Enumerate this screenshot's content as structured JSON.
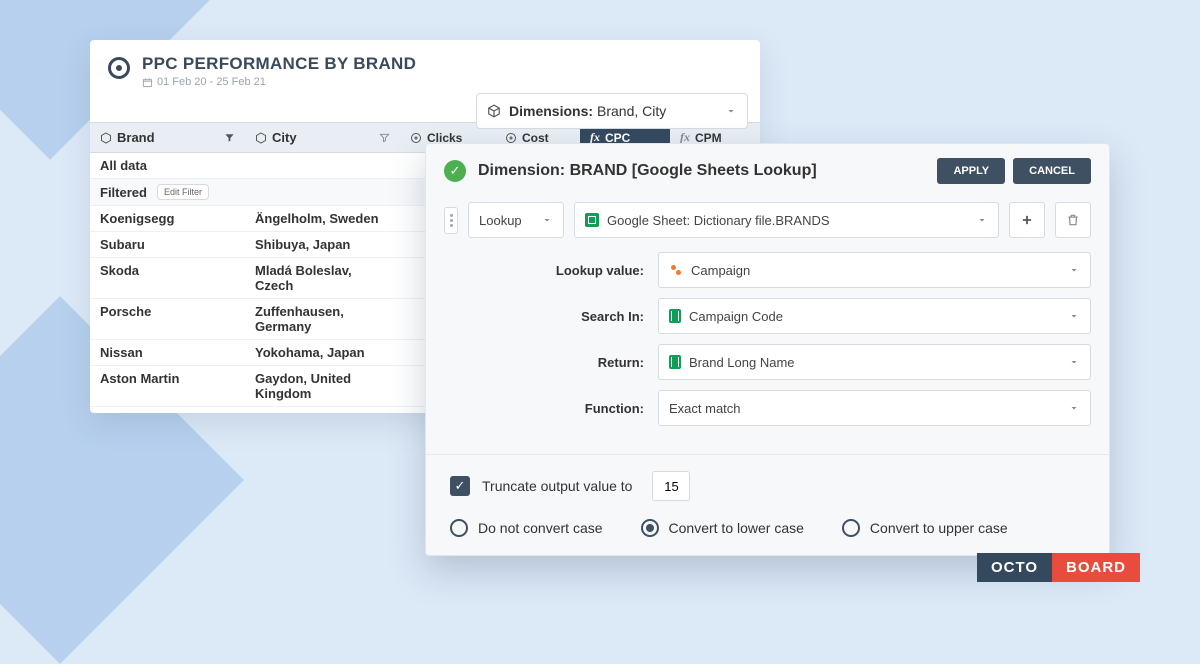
{
  "main": {
    "title": "PPC PERFORMANCE BY BRAND",
    "date_range": "01 Feb 20 - 25 Feb 21",
    "dimensions": {
      "label": "Dimensions:",
      "value": "Brand, City"
    }
  },
  "table": {
    "columns": {
      "brand": "Brand",
      "city": "City",
      "clicks": "Clicks",
      "cost": "Cost",
      "cpc": "CPC",
      "cpm": "CPM"
    },
    "all_data_label": "All data",
    "filtered_label": "Filtered",
    "edit_filter": "Edit Filter",
    "rows": [
      {
        "brand": "Koenigsegg",
        "city": "Ängelholm, Sweden"
      },
      {
        "brand": "Subaru",
        "city": "Shibuya, Japan"
      },
      {
        "brand": "Skoda",
        "city": "Mladá Boleslav, Czech"
      },
      {
        "brand": "Porsche",
        "city": "Zuffenhausen, Germany"
      },
      {
        "brand": "Nissan",
        "city": "Yokohama, Japan"
      },
      {
        "brand": "Aston Martin",
        "city": "Gaydon, United Kingdom"
      }
    ]
  },
  "dialog": {
    "title": "Dimension: BRAND [Google Sheets Lookup]",
    "apply": "APPLY",
    "cancel": "CANCEL",
    "type_select": "Lookup",
    "sheet_select": "Google Sheet: Dictionary file.BRANDS",
    "lookup_value_label": "Lookup value:",
    "lookup_value": "Campaign",
    "search_in_label": "Search In:",
    "search_in": "Campaign Code",
    "return_label": "Return:",
    "return_value": "Brand Long Name",
    "function_label": "Function:",
    "function_value": "Exact match",
    "truncate_label": "Truncate output value to",
    "truncate_value": "15",
    "case_options": {
      "none": "Do not convert case",
      "lower": "Convert to lower case",
      "upper": "Convert to upper case"
    }
  },
  "logo": {
    "left": "OCTO",
    "right": "BOARD"
  },
  "colors": {
    "bg": "#dce9f7",
    "bg_shape": "#b6d0ee",
    "header_text": "#3a4a5c",
    "dark_btn": "#3e5062",
    "active_col": "#34495e",
    "green": "#4caf50",
    "logo_red": "#e74c3c"
  }
}
